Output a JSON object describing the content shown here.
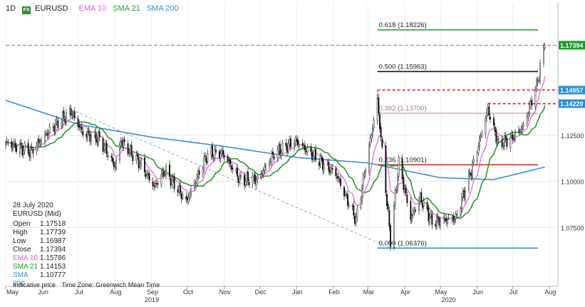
{
  "header": {
    "timeframe": "1D",
    "logo": "FX",
    "symbol": "EURUSD",
    "ema10": "EMA 10",
    "sma21": "SMA 21",
    "sma200": "SMA 200"
  },
  "colors": {
    "ema10": "#e05fd6",
    "sma21": "#2a9a2a",
    "sma200": "#3a8fd0",
    "up": "#ffffff",
    "down": "#111111",
    "fib618": "#2aa52a",
    "fib500": "#111111",
    "fib382": "#c99a9a",
    "fib236": "#c0392b",
    "fib000": "#3a8fd0",
    "resistance": "#e02020",
    "price_tag": "#1e9a2a",
    "level_tag": "#2b8fd6"
  },
  "ohlc_panel": {
    "date": "28 July 2020",
    "instrument": "EURUSD (Mid)",
    "rows": [
      {
        "label": "Open",
        "value": "1.17518"
      },
      {
        "label": "High",
        "value": "1.17739"
      },
      {
        "label": "Low",
        "value": "1.16987"
      },
      {
        "label": "Close",
        "value": "1.17394"
      },
      {
        "label": "EMA 10",
        "value": "1.15786"
      },
      {
        "label": "SMA 21",
        "value": "1.14153"
      },
      {
        "label": "SMA 200",
        "value": "1.10777"
      }
    ]
  },
  "footer": {
    "indicative": "Indicative price",
    "timezone": "Time Zone: Greenwich Mean Time"
  },
  "chart_data": {
    "type": "candlestick",
    "title": "",
    "x_ticks": [
      "May",
      "Jun",
      "Jul",
      "Aug",
      "Sep",
      "Oct",
      "Nov",
      "Dec",
      "Jan",
      "Feb",
      "Mar",
      "Apr",
      "May",
      "Jun",
      "Jul",
      "Aug"
    ],
    "year_labels": [
      "2019",
      "2020"
    ],
    "y_ticks": [
      "1.07500",
      "1.10000",
      "1.12500"
    ],
    "ylim": [
      1.055,
      1.195
    ],
    "current_price": "1.17394",
    "fibonacci": [
      {
        "label": "0.618 (1.18226)",
        "value": 1.18226
      },
      {
        "label": "0.500 (1.15963)",
        "value": 1.15963
      },
      {
        "label": "0.382 (1.13700)",
        "value": 1.137
      },
      {
        "label": "0.236 (1.10901)",
        "value": 1.10901
      },
      {
        "label": "0.000 (1.06376)",
        "value": 1.06376
      }
    ],
    "resistance_levels": [
      {
        "tag": "1.14957",
        "value": 1.14957
      },
      {
        "tag": "1.14220",
        "value": 1.1422
      }
    ],
    "price_anchors": [
      {
        "date": "2019-05-01",
        "close": 1.121
      },
      {
        "date": "2019-05-22",
        "close": 1.116
      },
      {
        "date": "2019-06-06",
        "close": 1.127
      },
      {
        "date": "2019-06-25",
        "close": 1.138
      },
      {
        "date": "2019-07-05",
        "close": 1.126
      },
      {
        "date": "2019-07-19",
        "close": 1.123
      },
      {
        "date": "2019-08-01",
        "close": 1.108
      },
      {
        "date": "2019-08-06",
        "close": 1.122
      },
      {
        "date": "2019-08-23",
        "close": 1.109
      },
      {
        "date": "2019-09-03",
        "close": 1.097
      },
      {
        "date": "2019-09-12",
        "close": 1.106
      },
      {
        "date": "2019-09-30",
        "close": 1.089
      },
      {
        "date": "2019-10-18",
        "close": 1.115
      },
      {
        "date": "2019-10-31",
        "close": 1.115
      },
      {
        "date": "2019-11-14",
        "close": 1.101
      },
      {
        "date": "2019-11-29",
        "close": 1.101
      },
      {
        "date": "2019-12-13",
        "close": 1.115
      },
      {
        "date": "2019-12-31",
        "close": 1.122
      },
      {
        "date": "2020-01-15",
        "close": 1.114
      },
      {
        "date": "2020-02-03",
        "close": 1.104
      },
      {
        "date": "2020-02-20",
        "close": 1.079
      },
      {
        "date": "2020-03-09",
        "close": 1.144
      },
      {
        "date": "2020-03-20",
        "close": 1.068
      },
      {
        "date": "2020-03-27",
        "close": 1.11
      },
      {
        "date": "2020-04-06",
        "close": 1.08
      },
      {
        "date": "2020-04-14",
        "close": 1.091
      },
      {
        "date": "2020-04-24",
        "close": 1.078
      },
      {
        "date": "2020-05-14",
        "close": 1.08
      },
      {
        "date": "2020-05-29",
        "close": 1.11
      },
      {
        "date": "2020-06-10",
        "close": 1.139
      },
      {
        "date": "2020-06-19",
        "close": 1.12
      },
      {
        "date": "2020-07-01",
        "close": 1.124
      },
      {
        "date": "2020-07-10",
        "close": 1.13
      },
      {
        "date": "2020-07-21",
        "close": 1.152
      },
      {
        "date": "2020-07-28",
        "close": 1.174
      }
    ],
    "sma200_anchors": [
      {
        "date": "2019-05-01",
        "value": 1.144
      },
      {
        "date": "2019-07-01",
        "value": 1.131
      },
      {
        "date": "2019-09-01",
        "value": 1.124
      },
      {
        "date": "2019-11-01",
        "value": 1.119
      },
      {
        "date": "2020-01-01",
        "value": 1.113
      },
      {
        "date": "2020-03-01",
        "value": 1.11
      },
      {
        "date": "2020-05-01",
        "value": 1.102
      },
      {
        "date": "2020-06-15",
        "value": 1.101
      },
      {
        "date": "2020-07-28",
        "value": 1.10777
      }
    ],
    "trendline": [
      {
        "date": "2019-06-25",
        "value": 1.139
      },
      {
        "date": "2020-03-20",
        "value": 1.06376
      }
    ]
  }
}
